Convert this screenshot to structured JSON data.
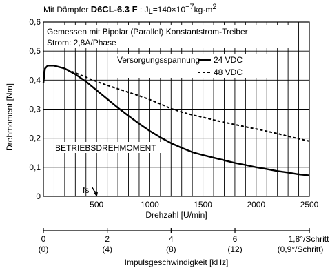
{
  "chart_data": {
    "type": "line",
    "header": {
      "prefix": "Mit Dämpfer ",
      "model": "D6CL-6.3 F",
      "inertia": " : J",
      "inertia_sub": "L",
      "inertia_value": "=140×10",
      "inertia_exp": "−7",
      "inertia_unit": "kg·m",
      "inertia_unit_exp": "2"
    },
    "annotations": {
      "line1": "Gemessen mit Bipolar (Parallel) Konstantstrom-Treiber",
      "line2": "Strom: 2,8A/Phase",
      "region": "BETRIEBSDREHMOMENT",
      "fs": "fs"
    },
    "legend": {
      "title": "Versorgungsspannung",
      "position": "top-right",
      "entries": [
        "24 VDC",
        "48 VDC"
      ]
    },
    "xlabel": "Drehzahl [U/min]",
    "ylabel": "Drehmoment [Nm]",
    "xlim": [
      0,
      2500
    ],
    "ylim": [
      0,
      0.6
    ],
    "grid": true,
    "x_ticks": [
      {
        "value": 500,
        "label": "500"
      },
      {
        "value": 1000,
        "label": "1000"
      },
      {
        "value": 1500,
        "label": "1500"
      },
      {
        "value": 2000,
        "label": "2000"
      },
      {
        "value": 2500,
        "label": "2500"
      }
    ],
    "y_ticks": [
      {
        "value": 0,
        "label": "0"
      },
      {
        "value": 0.1,
        "label": "0,1"
      },
      {
        "value": 0.2,
        "label": "0,2"
      },
      {
        "value": 0.3,
        "label": "0,3"
      },
      {
        "value": 0.4,
        "label": "0,4"
      },
      {
        "value": 0.5,
        "label": "0,5"
      },
      {
        "value": 0.6,
        "label": "0,6"
      }
    ],
    "series": [
      {
        "name": "24 VDC",
        "style": "solid",
        "points": [
          [
            0,
            0.39
          ],
          [
            15,
            0.44
          ],
          [
            40,
            0.45
          ],
          [
            100,
            0.45
          ],
          [
            200,
            0.44
          ],
          [
            300,
            0.42
          ],
          [
            400,
            0.395
          ],
          [
            500,
            0.365
          ],
          [
            600,
            0.335
          ],
          [
            700,
            0.305
          ],
          [
            800,
            0.277
          ],
          [
            900,
            0.25
          ],
          [
            1000,
            0.225
          ],
          [
            1100,
            0.203
          ],
          [
            1200,
            0.183
          ],
          [
            1300,
            0.167
          ],
          [
            1400,
            0.152
          ],
          [
            1500,
            0.142
          ],
          [
            1600,
            0.133
          ],
          [
            1700,
            0.124
          ],
          [
            1800,
            0.115
          ],
          [
            1900,
            0.108
          ],
          [
            2000,
            0.1
          ],
          [
            2100,
            0.094
          ],
          [
            2200,
            0.087
          ],
          [
            2300,
            0.082
          ],
          [
            2400,
            0.076
          ],
          [
            2500,
            0.072
          ]
        ]
      },
      {
        "name": "48 VDC",
        "style": "dashed",
        "points": [
          [
            0,
            0.39
          ],
          [
            15,
            0.44
          ],
          [
            40,
            0.45
          ],
          [
            100,
            0.45
          ],
          [
            200,
            0.44
          ],
          [
            300,
            0.425
          ],
          [
            400,
            0.41
          ],
          [
            500,
            0.395
          ],
          [
            600,
            0.382
          ],
          [
            700,
            0.37
          ],
          [
            800,
            0.358
          ],
          [
            900,
            0.346
          ],
          [
            1000,
            0.333
          ],
          [
            1100,
            0.318
          ],
          [
            1200,
            0.302
          ],
          [
            1300,
            0.29
          ],
          [
            1400,
            0.28
          ],
          [
            1500,
            0.272
          ],
          [
            1600,
            0.263
          ],
          [
            1700,
            0.255
          ],
          [
            1800,
            0.247
          ],
          [
            1900,
            0.239
          ],
          [
            2000,
            0.232
          ],
          [
            2100,
            0.224
          ],
          [
            2200,
            0.216
          ],
          [
            2300,
            0.207
          ],
          [
            2400,
            0.198
          ],
          [
            2500,
            0.19
          ]
        ]
      }
    ],
    "fs_marker": {
      "x": 500,
      "y": 0.0
    },
    "secondary_axis": {
      "label": "Impulsgeschwindigkeit [kHz]",
      "ticks": [
        {
          "value": 0,
          "label": "0",
          "sublabel": "(0)"
        },
        {
          "value": 2,
          "label": "2",
          "sublabel": "(4)"
        },
        {
          "value": 4,
          "label": "4",
          "sublabel": "(8)"
        },
        {
          "value": 6,
          "label": "6",
          "sublabel": "(12)"
        }
      ],
      "end_label": "1,8°/Schritt",
      "end_sublabel": "(0,9°/Schritt)",
      "xlim": [
        0,
        8.33
      ]
    }
  }
}
